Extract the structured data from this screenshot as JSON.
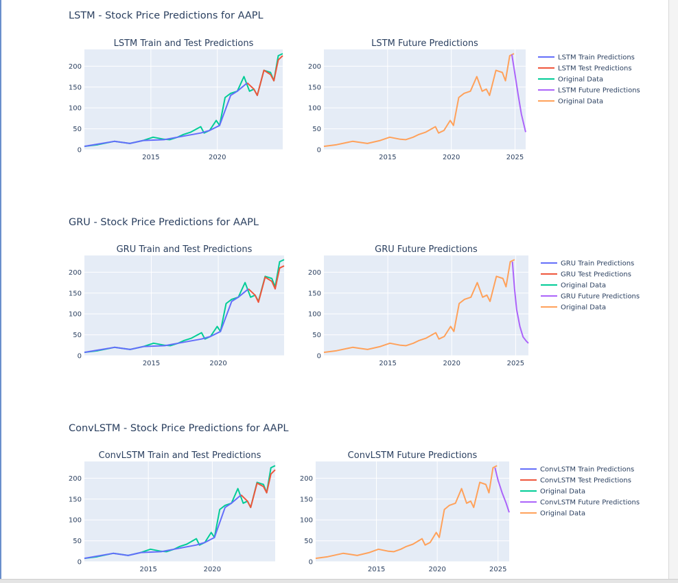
{
  "figures": [
    {
      "title": "LSTM - Stock Price Predictions for AAPL",
      "subplots": [
        {
          "title": "LSTM Train and Test Predictions"
        },
        {
          "title": "LSTM Future Predictions"
        }
      ],
      "legend": [
        "LSTM Train Predictions",
        "LSTM Test Predictions",
        "Original Data",
        "LSTM Future Predictions",
        "Original Data"
      ]
    },
    {
      "title": "GRU - Stock Price Predictions for AAPL",
      "subplots": [
        {
          "title": "GRU Train and Test Predictions"
        },
        {
          "title": "GRU Future Predictions"
        }
      ],
      "legend": [
        "GRU Train Predictions",
        "GRU Test Predictions",
        "Original Data",
        "GRU Future Predictions",
        "Original Data"
      ]
    },
    {
      "title": "ConvLSTM - Stock Price Predictions for AAPL",
      "subplots": [
        {
          "title": "ConvLSTM Train and Test Predictions"
        },
        {
          "title": "ConvLSTM Future Predictions"
        }
      ],
      "legend": [
        "ConvLSTM Train Predictions",
        "ConvLSTM Test Predictions",
        "Original Data",
        "ConvLSTM Future Predictions",
        "Original Data"
      ]
    }
  ],
  "chart_data": [
    {
      "type": "line",
      "title": "LSTM Train and Test Predictions",
      "x_ticks": [
        "2015",
        "2020"
      ],
      "y_ticks": [
        "0",
        "50",
        "100",
        "150",
        "200"
      ],
      "xlim": [
        "2010-01",
        "2024-12"
      ],
      "ylim": [
        0,
        240
      ],
      "grid": true,
      "series": [
        {
          "name": "LSTM Train Predictions",
          "color": "#636efa",
          "x": [
            "2010-01",
            "2012-04",
            "2013-06",
            "2014-06",
            "2016-01",
            "2017-01",
            "2018-10",
            "2019-06",
            "2020-03",
            "2021-01",
            "2021-07",
            "2022-04"
          ],
          "y": [
            8,
            20,
            15,
            22,
            24,
            30,
            40,
            46,
            58,
            130,
            140,
            160
          ]
        },
        {
          "name": "LSTM Test Predictions",
          "color": "#ef553b",
          "x": [
            "2022-04",
            "2022-10",
            "2023-01",
            "2023-07",
            "2024-01",
            "2024-04",
            "2024-08",
            "2024-12"
          ],
          "y": [
            160,
            145,
            130,
            190,
            180,
            165,
            215,
            225
          ]
        },
        {
          "name": "Original Data",
          "color": "#00cc96",
          "x": [
            "2010-01",
            "2011-01",
            "2012-04",
            "2012-10",
            "2013-06",
            "2014-06",
            "2015-03",
            "2016-01",
            "2016-06",
            "2017-01",
            "2017-06",
            "2018-01",
            "2018-10",
            "2019-01",
            "2019-06",
            "2019-12",
            "2020-03",
            "2020-08",
            "2021-01",
            "2021-07",
            "2022-01",
            "2022-06",
            "2022-10",
            "2023-01",
            "2023-07",
            "2024-01",
            "2024-04",
            "2024-08",
            "2024-12"
          ],
          "y": [
            8,
            12,
            20,
            18,
            15,
            22,
            30,
            25,
            24,
            30,
            36,
            42,
            55,
            40,
            46,
            70,
            58,
            125,
            135,
            140,
            175,
            140,
            145,
            130,
            190,
            185,
            165,
            225,
            230
          ]
        }
      ]
    },
    {
      "type": "line",
      "title": "LSTM Future Predictions",
      "x_ticks": [
        "2015",
        "2020",
        "2025"
      ],
      "y_ticks": [
        "0",
        "50",
        "100",
        "150",
        "200"
      ],
      "xlim": [
        "2010-01",
        "2025-11"
      ],
      "ylim": [
        0,
        240
      ],
      "grid": true,
      "series": [
        {
          "name": "Original Data",
          "color": "#ffa15a",
          "x": [
            "2010-01",
            "2011-01",
            "2012-04",
            "2012-10",
            "2013-06",
            "2014-06",
            "2015-03",
            "2016-01",
            "2016-06",
            "2017-01",
            "2017-06",
            "2018-01",
            "2018-10",
            "2019-01",
            "2019-06",
            "2019-12",
            "2020-03",
            "2020-08",
            "2021-01",
            "2021-07",
            "2022-01",
            "2022-06",
            "2022-10",
            "2023-01",
            "2023-07",
            "2024-01",
            "2024-04",
            "2024-08",
            "2024-12"
          ],
          "y": [
            8,
            12,
            20,
            18,
            15,
            22,
            30,
            25,
            24,
            30,
            36,
            42,
            55,
            40,
            46,
            70,
            58,
            125,
            135,
            140,
            175,
            140,
            145,
            130,
            190,
            185,
            165,
            225,
            230
          ]
        },
        {
          "name": "LSTM Future Predictions",
          "color": "#ab63fa",
          "x": [
            "2024-10",
            "2025-01",
            "2025-04",
            "2025-07",
            "2025-11"
          ],
          "y": [
            228,
            180,
            130,
            85,
            42
          ]
        }
      ]
    },
    {
      "type": "line",
      "title": "GRU Train and Test Predictions",
      "x_ticks": [
        "2015",
        "2020"
      ],
      "y_ticks": [
        "0",
        "50",
        "100",
        "150",
        "200"
      ],
      "xlim": [
        "2010-01",
        "2024-12"
      ],
      "ylim": [
        0,
        240
      ],
      "grid": true,
      "series": [
        {
          "name": "GRU Train Predictions",
          "color": "#636efa",
          "x": [
            "2010-01",
            "2012-04",
            "2013-06",
            "2014-06",
            "2016-01",
            "2017-01",
            "2018-10",
            "2019-06",
            "2020-03",
            "2021-01",
            "2021-07",
            "2022-04"
          ],
          "y": [
            8,
            20,
            15,
            22,
            24,
            30,
            40,
            46,
            58,
            130,
            140,
            160
          ]
        },
        {
          "name": "GRU Test Predictions",
          "color": "#ef553b",
          "x": [
            "2022-04",
            "2022-10",
            "2023-01",
            "2023-07",
            "2024-01",
            "2024-04",
            "2024-08",
            "2024-12"
          ],
          "y": [
            160,
            145,
            128,
            188,
            178,
            160,
            210,
            215
          ]
        },
        {
          "name": "Original Data",
          "color": "#00cc96",
          "x": [
            "2010-01",
            "2011-01",
            "2012-04",
            "2012-10",
            "2013-06",
            "2014-06",
            "2015-03",
            "2016-01",
            "2016-06",
            "2017-01",
            "2017-06",
            "2018-01",
            "2018-10",
            "2019-01",
            "2019-06",
            "2019-12",
            "2020-03",
            "2020-08",
            "2021-01",
            "2021-07",
            "2022-01",
            "2022-06",
            "2022-10",
            "2023-01",
            "2023-07",
            "2024-01",
            "2024-04",
            "2024-08",
            "2024-12"
          ],
          "y": [
            8,
            12,
            20,
            18,
            15,
            22,
            30,
            25,
            24,
            30,
            36,
            42,
            55,
            40,
            46,
            70,
            58,
            125,
            135,
            140,
            175,
            140,
            145,
            130,
            190,
            185,
            165,
            225,
            230
          ]
        }
      ]
    },
    {
      "type": "line",
      "title": "GRU Future Predictions",
      "x_ticks": [
        "2015",
        "2020",
        "2025"
      ],
      "y_ticks": [
        "0",
        "50",
        "100",
        "150",
        "200"
      ],
      "xlim": [
        "2010-01",
        "2026-01"
      ],
      "ylim": [
        0,
        240
      ],
      "grid": true,
      "series": [
        {
          "name": "Original Data",
          "color": "#ffa15a",
          "x": [
            "2010-01",
            "2011-01",
            "2012-04",
            "2012-10",
            "2013-06",
            "2014-06",
            "2015-03",
            "2016-01",
            "2016-06",
            "2017-01",
            "2017-06",
            "2018-01",
            "2018-10",
            "2019-01",
            "2019-06",
            "2019-12",
            "2020-03",
            "2020-08",
            "2021-01",
            "2021-07",
            "2022-01",
            "2022-06",
            "2022-10",
            "2023-01",
            "2023-07",
            "2024-01",
            "2024-04",
            "2024-08",
            "2024-12"
          ],
          "y": [
            8,
            12,
            20,
            18,
            15,
            22,
            30,
            25,
            24,
            30,
            36,
            42,
            55,
            40,
            46,
            70,
            58,
            125,
            135,
            140,
            175,
            140,
            145,
            130,
            190,
            185,
            165,
            225,
            230
          ]
        },
        {
          "name": "GRU Future Predictions",
          "color": "#ab63fa",
          "x": [
            "2024-10",
            "2024-12",
            "2025-02",
            "2025-05",
            "2025-08",
            "2025-11",
            "2026-01"
          ],
          "y": [
            225,
            160,
            110,
            70,
            45,
            35,
            30
          ]
        }
      ]
    },
    {
      "type": "line",
      "title": "ConvLSTM Train and Test Predictions",
      "x_ticks": [
        "2015",
        "2020"
      ],
      "y_ticks": [
        "0",
        "50",
        "100",
        "150",
        "200"
      ],
      "xlim": [
        "2010-01",
        "2024-12"
      ],
      "ylim": [
        0,
        240
      ],
      "grid": true,
      "series": [
        {
          "name": "ConvLSTM Train Predictions",
          "color": "#636efa",
          "x": [
            "2010-01",
            "2012-04",
            "2013-06",
            "2014-06",
            "2016-01",
            "2017-01",
            "2018-10",
            "2019-06",
            "2020-03",
            "2021-01",
            "2021-07",
            "2022-04"
          ],
          "y": [
            8,
            20,
            15,
            22,
            24,
            30,
            40,
            46,
            58,
            130,
            140,
            160
          ]
        },
        {
          "name": "ConvLSTM Test Predictions",
          "color": "#ef553b",
          "x": [
            "2022-04",
            "2022-10",
            "2023-01",
            "2023-07",
            "2024-01",
            "2024-04",
            "2024-08",
            "2024-12"
          ],
          "y": [
            160,
            145,
            130,
            188,
            180,
            165,
            210,
            220
          ]
        },
        {
          "name": "Original Data",
          "color": "#00cc96",
          "x": [
            "2010-01",
            "2011-01",
            "2012-04",
            "2012-10",
            "2013-06",
            "2014-06",
            "2015-03",
            "2016-01",
            "2016-06",
            "2017-01",
            "2017-06",
            "2018-01",
            "2018-10",
            "2019-01",
            "2019-06",
            "2019-12",
            "2020-03",
            "2020-08",
            "2021-01",
            "2021-07",
            "2022-01",
            "2022-06",
            "2022-10",
            "2023-01",
            "2023-07",
            "2024-01",
            "2024-04",
            "2024-08",
            "2024-12"
          ],
          "y": [
            8,
            12,
            20,
            18,
            15,
            22,
            30,
            25,
            24,
            30,
            36,
            42,
            55,
            40,
            46,
            70,
            58,
            125,
            135,
            140,
            175,
            140,
            145,
            130,
            190,
            185,
            165,
            225,
            230
          ]
        }
      ]
    },
    {
      "type": "line",
      "title": "ConvLSTM Future Predictions",
      "x_ticks": [
        "2015",
        "2020",
        "2025"
      ],
      "y_ticks": [
        "0",
        "50",
        "100",
        "150",
        "200"
      ],
      "xlim": [
        "2010-01",
        "2025-12"
      ],
      "ylim": [
        0,
        240
      ],
      "grid": true,
      "series": [
        {
          "name": "Original Data",
          "color": "#ffa15a",
          "x": [
            "2010-01",
            "2011-01",
            "2012-04",
            "2012-10",
            "2013-06",
            "2014-06",
            "2015-03",
            "2016-01",
            "2016-06",
            "2017-01",
            "2017-06",
            "2018-01",
            "2018-10",
            "2019-01",
            "2019-06",
            "2019-12",
            "2020-03",
            "2020-08",
            "2021-01",
            "2021-07",
            "2022-01",
            "2022-06",
            "2022-10",
            "2023-01",
            "2023-07",
            "2024-01",
            "2024-04",
            "2024-08",
            "2024-12"
          ],
          "y": [
            8,
            12,
            20,
            18,
            15,
            22,
            30,
            25,
            24,
            30,
            36,
            42,
            55,
            40,
            46,
            70,
            58,
            125,
            135,
            140,
            175,
            140,
            145,
            130,
            190,
            185,
            165,
            225,
            230
          ]
        },
        {
          "name": "ConvLSTM Future Predictions",
          "color": "#ab63fa",
          "x": [
            "2024-10",
            "2025-01",
            "2025-05",
            "2025-09",
            "2025-12"
          ],
          "y": [
            225,
            195,
            165,
            140,
            118
          ]
        }
      ]
    }
  ]
}
